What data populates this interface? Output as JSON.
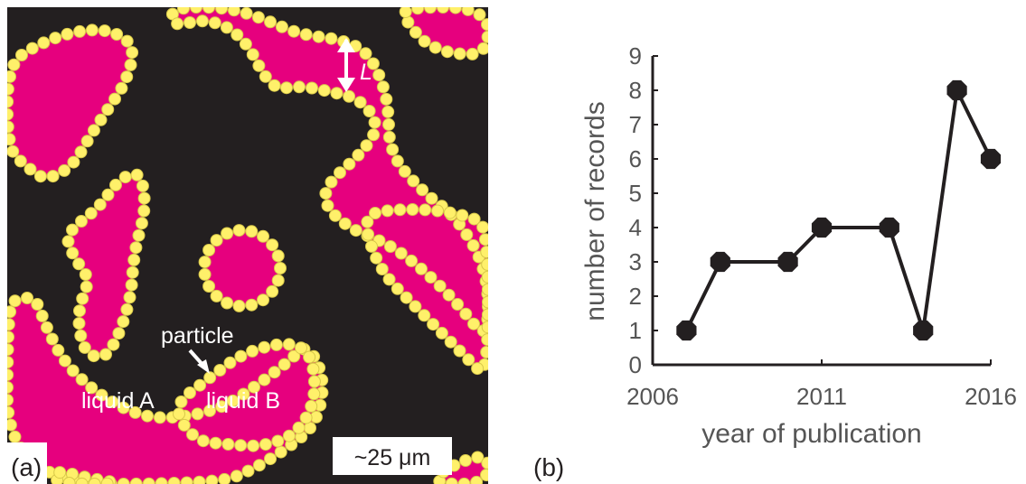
{
  "panel_a": {
    "panel_label": "(a)",
    "annotations": {
      "length_label": "L",
      "particle_label": "particle",
      "liquid_a_label": "liquid A",
      "liquid_b_label": "liquid B",
      "scale_bar_label": "~25 μm"
    },
    "colors": {
      "liquid_a": "#231f20",
      "liquid_b": "#e6007e",
      "particle": "#fff06a",
      "particle_edge": "#d8c84a"
    }
  },
  "panel_b": {
    "panel_label": "(b)"
  },
  "chart_data": {
    "type": "line",
    "title": "",
    "xlabel": "year of publication",
    "ylabel": "number of records",
    "x": [
      2007,
      2008,
      2010,
      2011,
      2013,
      2014,
      2015,
      2016
    ],
    "y": [
      1,
      3,
      3,
      4,
      4,
      1,
      8,
      6
    ],
    "xlim": [
      2006,
      2016
    ],
    "ylim": [
      0,
      9
    ],
    "xticks": [
      2006,
      2011,
      2016
    ],
    "yticks": [
      0,
      1,
      2,
      3,
      4,
      5,
      6,
      7,
      8,
      9
    ],
    "grid": false,
    "line_color": "#231f20",
    "marker": "octagon"
  }
}
